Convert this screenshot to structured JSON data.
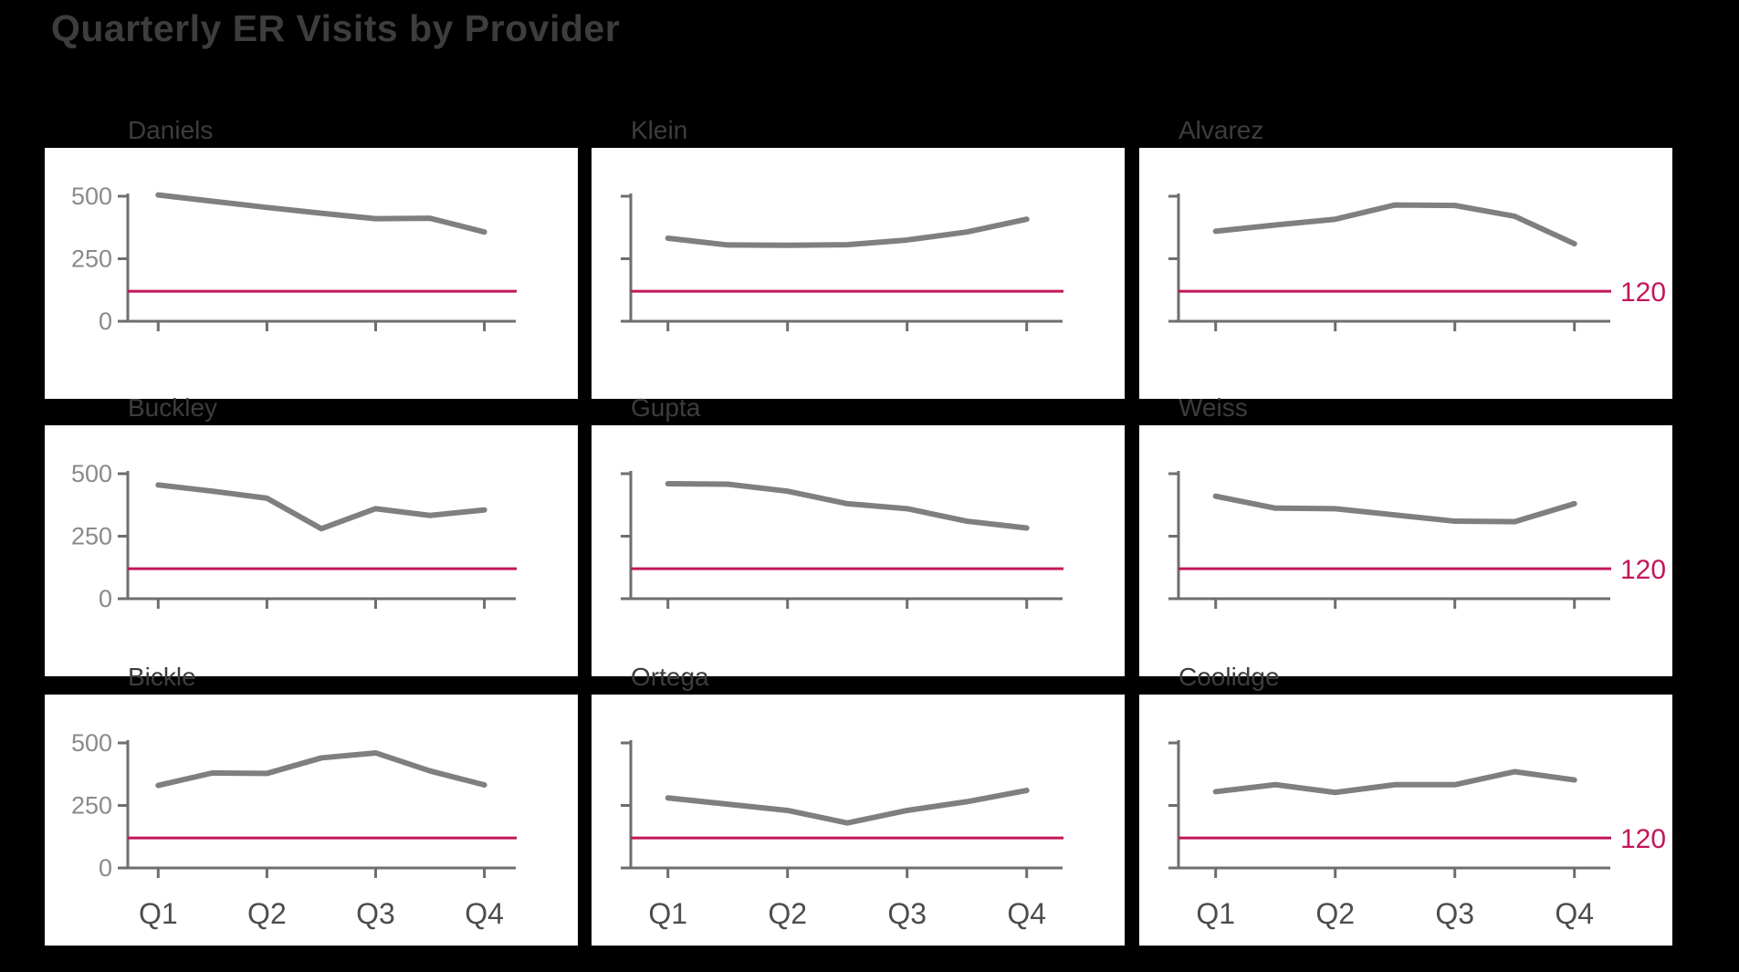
{
  "title": "Quarterly ER Visits by Provider",
  "colors": {
    "background": "#000000",
    "panel_background": "#ffffff",
    "title_text": "#3d3d3d",
    "panel_title_text": "#3d3d3d",
    "axis_line": "#6e6e6e",
    "y_tick_label": "#8a8a8a",
    "x_tick_label": "#4d4d4d",
    "series_line": "#7f7f7f",
    "reference_line": "#c2175b"
  },
  "chart_data": {
    "type": "line",
    "layout": "3x3 small multiples, shared axes; y labels on left column only, x labels on bottom row only",
    "title": "Quarterly ER Visits by Provider",
    "x": [
      1,
      1.5,
      2,
      2.5,
      3,
      3.5,
      4
    ],
    "x_tick_positions": [
      1,
      2,
      3,
      4
    ],
    "x_tick_labels": [
      "Q1",
      "Q2",
      "Q3",
      "Q4"
    ],
    "y_ticks": [
      0,
      250,
      500
    ],
    "ylim": [
      0,
      560
    ],
    "grid": false,
    "legend": false,
    "reference_line": {
      "value": 120,
      "label": "120",
      "label_column": "right",
      "color": "#c2175b"
    },
    "panels": [
      {
        "name": "Daniels",
        "row": 0,
        "col": 0,
        "values": [
          505,
          480,
          455,
          432,
          410,
          412,
          357
        ]
      },
      {
        "name": "Klein",
        "row": 0,
        "col": 1,
        "values": [
          332,
          305,
          304,
          306,
          325,
          357,
          408
        ]
      },
      {
        "name": "Alvarez",
        "row": 0,
        "col": 2,
        "values": [
          360,
          385,
          408,
          465,
          463,
          420,
          310
        ]
      },
      {
        "name": "Buckley",
        "row": 1,
        "col": 0,
        "values": [
          455,
          430,
          402,
          280,
          360,
          333,
          355
        ]
      },
      {
        "name": "Gupta",
        "row": 1,
        "col": 1,
        "values": [
          460,
          458,
          430,
          380,
          360,
          310,
          283
        ]
      },
      {
        "name": "Weiss",
        "row": 1,
        "col": 2,
        "values": [
          410,
          362,
          360,
          335,
          310,
          308,
          380
        ]
      },
      {
        "name": "Bickle",
        "row": 2,
        "col": 0,
        "values": [
          330,
          380,
          378,
          440,
          460,
          388,
          332
        ]
      },
      {
        "name": "Ortega",
        "row": 2,
        "col": 1,
        "values": [
          280,
          255,
          230,
          180,
          230,
          265,
          310
        ]
      },
      {
        "name": "Coolidge",
        "row": 2,
        "col": 2,
        "values": [
          305,
          333,
          302,
          333,
          333,
          385,
          352
        ]
      }
    ]
  }
}
